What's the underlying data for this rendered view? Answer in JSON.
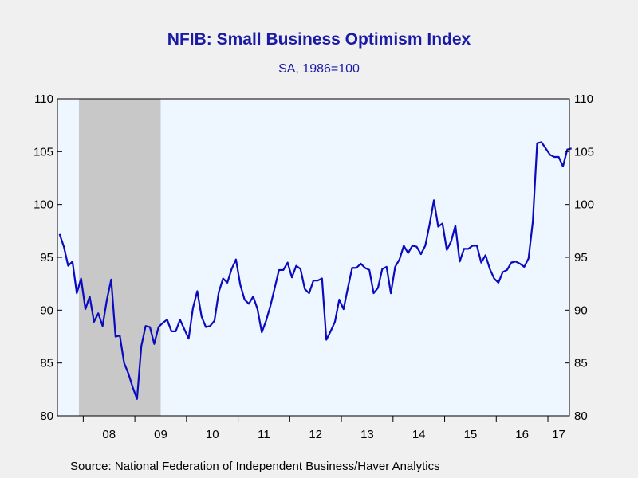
{
  "colors": {
    "background": "#f0f0f0",
    "plot_area": "#eef6ff",
    "recession_shade": "#c8c8c8",
    "line": "#0a0abf",
    "title": "#1a1aa6"
  },
  "source_text": "Source:  National Federation of Independent Business/Haver Analytics",
  "chart_data": {
    "type": "line",
    "title": "NFIB: Small Business Optimism Index",
    "subtitle": "SA, 1986=100",
    "xlabel": "",
    "ylabel": "",
    "x_range": [
      "2007-07",
      "2017-05"
    ],
    "ylim": [
      80,
      110
    ],
    "y_ticks": [
      80,
      85,
      90,
      95,
      100,
      105,
      110
    ],
    "x_tick_labels": [
      {
        "label": "08",
        "year": 2008
      },
      {
        "label": "09",
        "year": 2009
      },
      {
        "label": "10",
        "year": 2010
      },
      {
        "label": "11",
        "year": 2011
      },
      {
        "label": "12",
        "year": 2012
      },
      {
        "label": "13",
        "year": 2013
      },
      {
        "label": "14",
        "year": 2014
      },
      {
        "label": "15",
        "year": 2015
      },
      {
        "label": "16",
        "year": 2016
      },
      {
        "label": "17",
        "year": 2017
      }
    ],
    "y_axis_both_sides": true,
    "grid": false,
    "recession": {
      "start": "2007-12",
      "end": "2009-06"
    },
    "series": [
      {
        "start": "2007-07",
        "frequency": "monthly",
        "values": [
          97.2,
          96.0,
          94.2,
          94.6,
          91.6,
          93.0,
          90.1,
          91.3,
          88.9,
          89.7,
          88.5,
          91.0,
          92.9,
          87.5,
          87.6,
          85.0,
          84.0,
          82.7,
          81.6,
          86.6,
          88.5,
          88.4,
          86.8,
          88.4,
          88.8,
          89.1,
          88.0,
          88.0,
          89.1,
          88.2,
          87.3,
          90.2,
          91.8,
          89.4,
          88.4,
          88.5,
          89.0,
          91.7,
          93.0,
          92.6,
          93.9,
          94.8,
          92.4,
          91.0,
          90.6,
          91.3,
          90.1,
          87.9,
          89.0,
          90.4,
          92.1,
          93.8,
          93.8,
          94.5,
          93.1,
          94.2,
          93.9,
          92.0,
          91.6,
          92.8,
          92.8,
          93.0,
          87.2,
          88.0,
          88.9,
          91.0,
          90.1,
          92.1,
          94.0,
          94.0,
          94.4,
          94.0,
          93.8,
          91.6,
          92.1,
          93.9,
          94.1,
          91.6,
          94.1,
          94.8,
          96.1,
          95.4,
          96.1,
          96.0,
          95.3,
          96.1,
          98.1,
          100.4,
          97.9,
          98.2,
          95.7,
          96.5,
          98.0,
          94.6,
          95.8,
          95.8,
          96.1,
          96.1,
          94.5,
          95.2,
          93.9,
          93.0,
          92.6,
          93.6,
          93.8,
          94.5,
          94.6,
          94.4,
          94.1,
          94.9,
          98.4,
          105.8,
          105.9,
          105.3,
          104.7,
          104.5,
          104.5,
          103.6,
          105.2,
          105.3
        ]
      }
    ]
  }
}
